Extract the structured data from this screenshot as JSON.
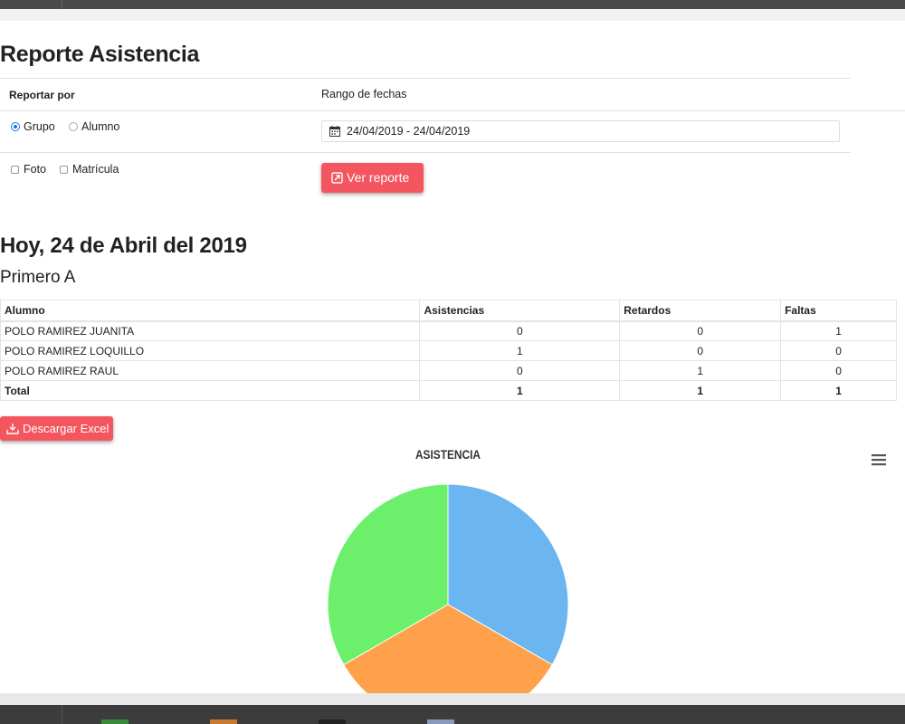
{
  "title": "Reporte Asistencia",
  "form": {
    "report_by_label": "Reportar por",
    "date_range_label": "Rango de fechas",
    "radio_group_label": "Grupo",
    "radio_student_label": "Alumno",
    "selected_radio": "Grupo",
    "check_photo_label": "Foto",
    "check_enrollment_label": "Matrícula",
    "date_range_value": "24/04/2019 - 24/04/2019",
    "view_report_button": "Ver reporte"
  },
  "today_heading": "Hoy, 24 de Abril del 2019",
  "group_name": "Primero A",
  "table": {
    "headers": [
      "Alumno",
      "Asistencias",
      "Retardos",
      "Faltas"
    ],
    "rows": [
      [
        "POLO RAMIREZ JUANITA",
        "0",
        "0",
        "1"
      ],
      [
        "POLO RAMIREZ LOQUILLO",
        "1",
        "0",
        "0"
      ],
      [
        "POLO RAMIREZ RAUL",
        "0",
        "1",
        "0"
      ]
    ],
    "total": [
      "Total",
      "1",
      "1",
      "1"
    ]
  },
  "download_button": "Descargar Excel",
  "colors": {
    "accent_button": "#f4565f",
    "radio_selected": "#1a73e8"
  },
  "chart_data": {
    "type": "pie",
    "title": "ASISTENCIA",
    "slices": [
      {
        "value": 1,
        "color": "#6bb5f0"
      },
      {
        "value": 1,
        "color": "#ffa04a"
      },
      {
        "value": 1,
        "color": "#6cf06c"
      }
    ],
    "legend_colors": [
      "#3a8a3a",
      "#c87a30",
      "#222222",
      "#8899bb"
    ]
  }
}
